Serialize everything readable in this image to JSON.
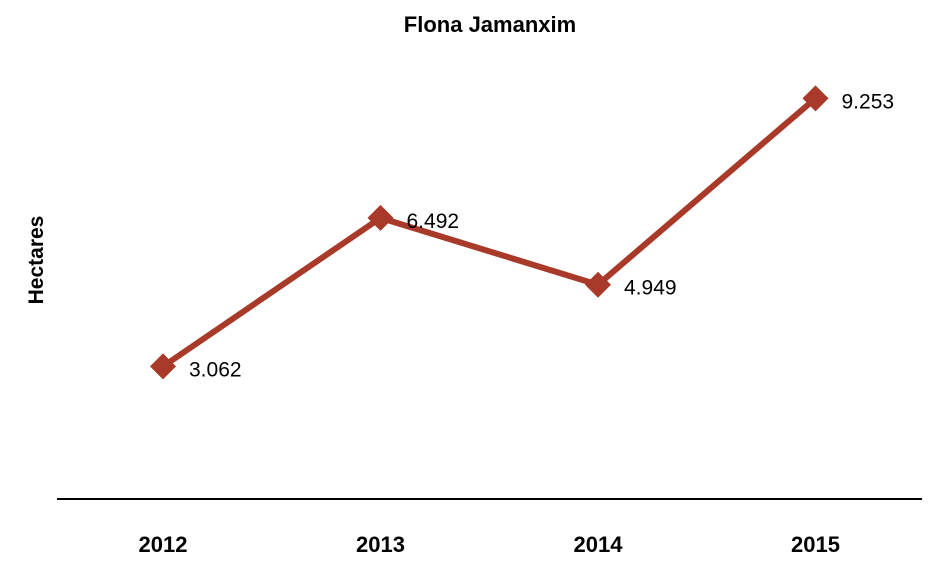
{
  "chart_data": {
    "type": "line",
    "title": "Flona Jamanxim",
    "ylabel": "Hectares",
    "xlabel": "",
    "categories": [
      "2012",
      "2013",
      "2014",
      "2015"
    ],
    "series": [
      {
        "values": [
          3062,
          6492,
          4949,
          9253
        ],
        "labels": [
          "3.062",
          "6.492",
          "4.949",
          "9.253"
        ],
        "color": "#a93a2a",
        "marker": "diamond"
      }
    ],
    "ylim": [
      0,
      12000
    ],
    "grid": false,
    "legend": "none"
  }
}
